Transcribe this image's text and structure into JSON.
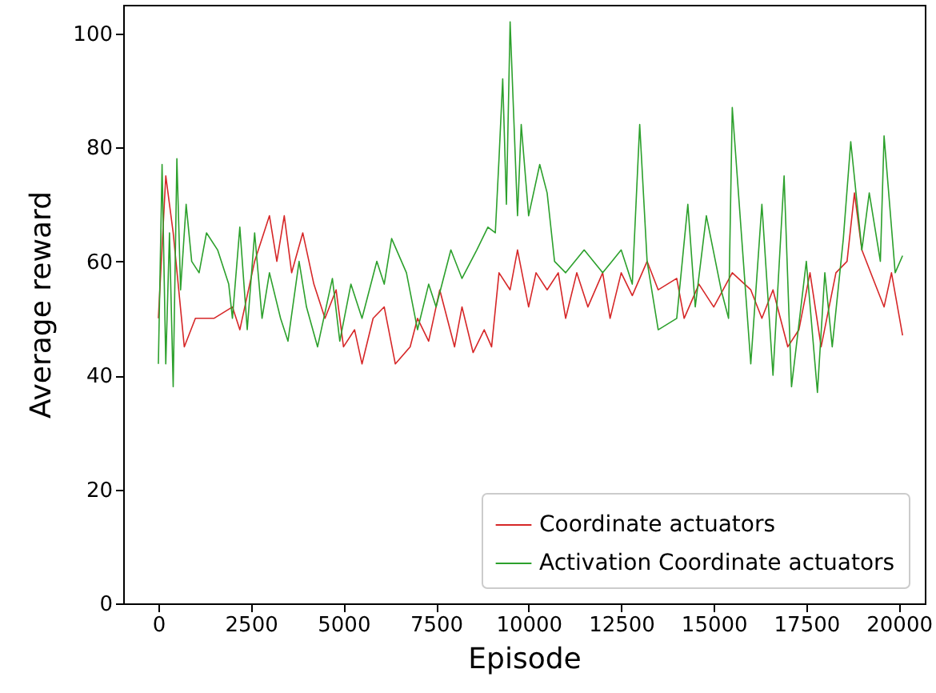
{
  "chart_data": {
    "type": "line",
    "xlabel": "Episode",
    "ylabel": "Average reward",
    "xlim": [
      -950,
      20700
    ],
    "xticks": [
      0,
      2500,
      5000,
      7500,
      10000,
      12500,
      15000,
      17500,
      20000
    ],
    "ylim": [
      0,
      105
    ],
    "yticks": [
      0,
      20,
      40,
      60,
      80,
      100
    ],
    "grid": false,
    "legend": "bottom right",
    "marker": "none",
    "line_style": "solid",
    "series": [
      {
        "name": "Coordinate actuators",
        "color": "#d62728",
        "x": [
          0,
          200,
          400,
          700,
          1000,
          1500,
          2000,
          2200,
          2600,
          3000,
          3200,
          3400,
          3600,
          3900,
          4200,
          4500,
          4800,
          5000,
          5300,
          5500,
          5800,
          6100,
          6400,
          6800,
          7000,
          7300,
          7600,
          8000,
          8200,
          8500,
          8800,
          9000,
          9200,
          9500,
          9700,
          10000,
          10200,
          10500,
          10800,
          11000,
          11300,
          11600,
          12000,
          12200,
          12500,
          12800,
          13200,
          13500,
          14000,
          14200,
          14600,
          15000,
          15500,
          16000,
          16300,
          16600,
          17000,
          17300,
          17600,
          17900,
          18300,
          18600,
          18800,
          19000,
          19300,
          19600,
          19800,
          20100
        ],
        "values": [
          50,
          75,
          65,
          45,
          50,
          50,
          52,
          48,
          60,
          68,
          60,
          68,
          58,
          65,
          56,
          50,
          55,
          45,
          48,
          42,
          50,
          52,
          42,
          45,
          50,
          46,
          55,
          45,
          52,
          44,
          48,
          45,
          58,
          55,
          62,
          52,
          58,
          55,
          58,
          50,
          58,
          52,
          58,
          50,
          58,
          54,
          60,
          55,
          57,
          50,
          56,
          52,
          58,
          55,
          50,
          55,
          45,
          48,
          58,
          45,
          58,
          60,
          72,
          62,
          57,
          52,
          58,
          47
        ]
      },
      {
        "name": "Activation Coordinate actuators",
        "color": "#2ca02c",
        "x": [
          0,
          100,
          200,
          300,
          400,
          500,
          600,
          750,
          900,
          1100,
          1300,
          1600,
          1900,
          2000,
          2200,
          2400,
          2600,
          2800,
          3000,
          3300,
          3500,
          3800,
          4000,
          4300,
          4700,
          4900,
          5200,
          5500,
          5900,
          6100,
          6300,
          6700,
          7000,
          7300,
          7500,
          7900,
          8200,
          8600,
          8900,
          9100,
          9200,
          9300,
          9400,
          9500,
          9700,
          9800,
          10000,
          10300,
          10500,
          10700,
          11000,
          11500,
          12000,
          12500,
          12800,
          13000,
          13200,
          13500,
          14000,
          14300,
          14500,
          14800,
          15200,
          15400,
          15500,
          15800,
          16000,
          16300,
          16600,
          16900,
          17100,
          17500,
          17800,
          18000,
          18200,
          18500,
          18700,
          19000,
          19200,
          19500,
          19600,
          19900,
          20100
        ],
        "values": [
          42,
          77,
          42,
          65,
          38,
          78,
          55,
          70,
          60,
          58,
          65,
          62,
          56,
          50,
          66,
          48,
          65,
          50,
          58,
          50,
          46,
          60,
          52,
          45,
          57,
          46,
          56,
          50,
          60,
          56,
          64,
          58,
          48,
          56,
          52,
          62,
          57,
          62,
          66,
          65,
          78,
          92,
          70,
          102,
          68,
          84,
          68,
          77,
          72,
          60,
          58,
          62,
          58,
          62,
          56,
          84,
          60,
          48,
          50,
          70,
          52,
          68,
          55,
          50,
          87,
          60,
          42,
          70,
          40,
          75,
          38,
          60,
          37,
          58,
          45,
          64,
          81,
          62,
          72,
          60,
          82,
          58,
          61
        ]
      }
    ]
  }
}
